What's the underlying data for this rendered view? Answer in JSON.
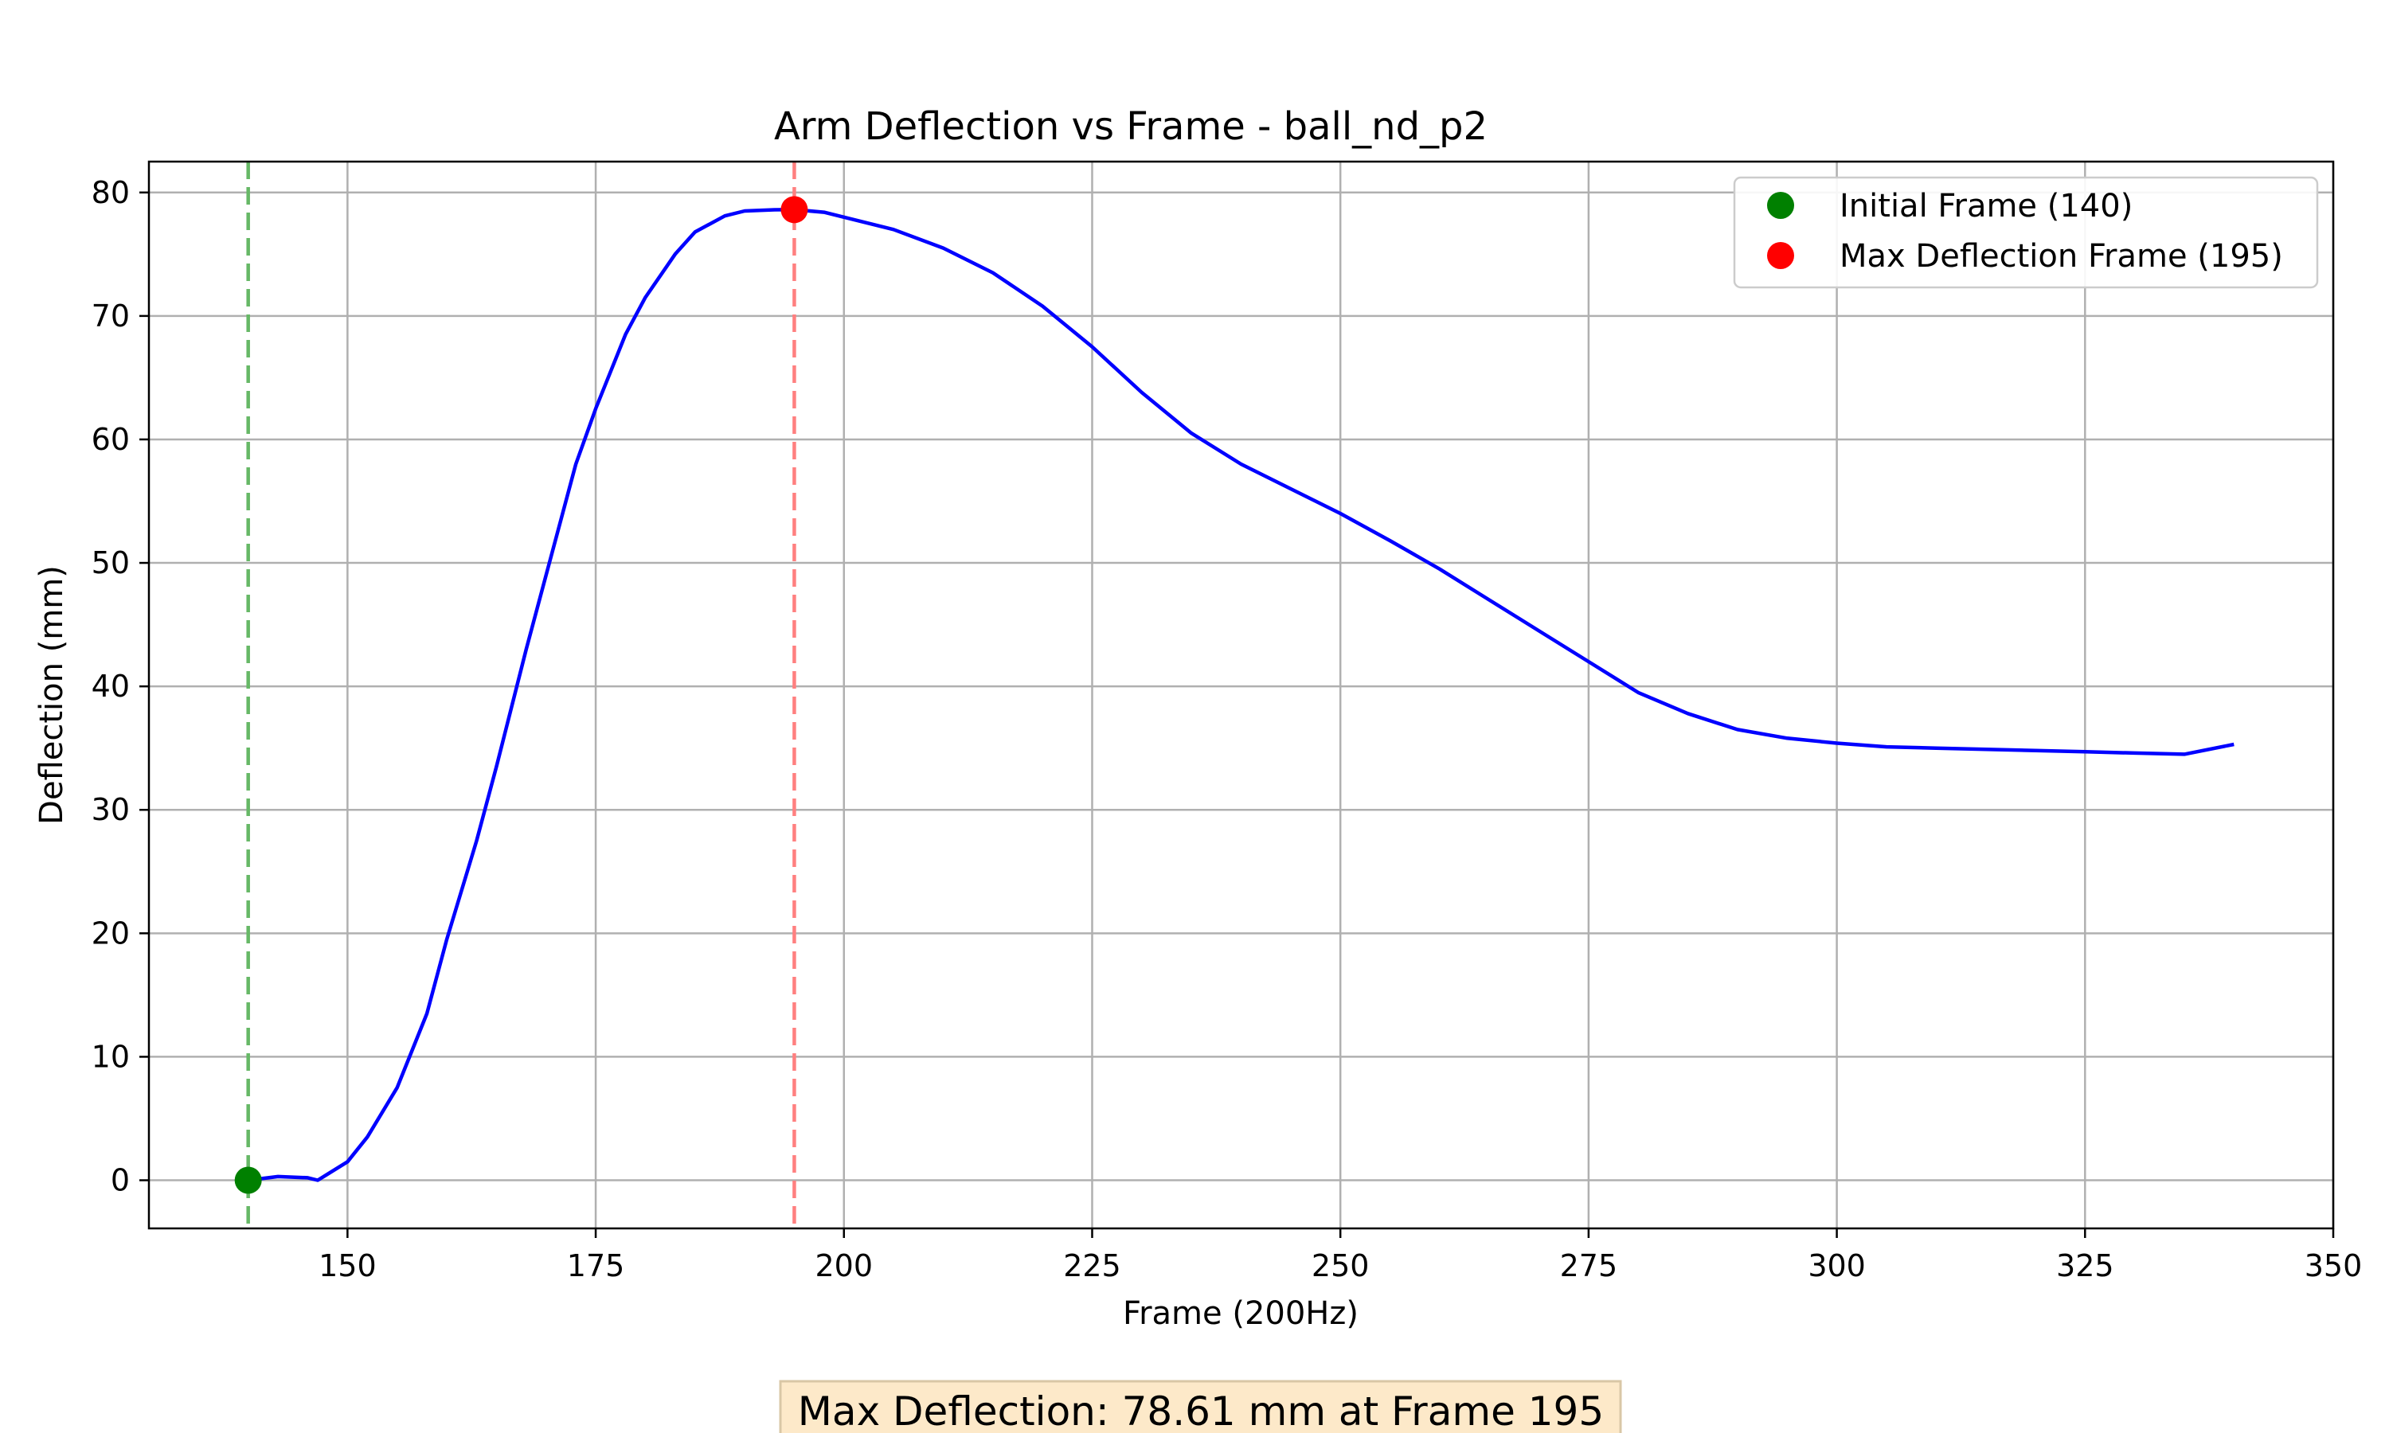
{
  "chart_data": {
    "type": "line",
    "title": "Arm Deflection vs Frame - ball_nd_p2",
    "xlabel": "Frame (200Hz)",
    "ylabel": "Deflection (mm)",
    "xlim": [
      130,
      350
    ],
    "ylim": [
      -3.9,
      82.5
    ],
    "xticks": [
      150,
      175,
      200,
      225,
      250,
      275,
      300,
      325,
      350
    ],
    "yticks": [
      0,
      10,
      20,
      30,
      40,
      50,
      60,
      70,
      80
    ],
    "grid": true,
    "legend_position": "top-right",
    "series": [
      {
        "name": "",
        "color": "#0000ff",
        "x": [
          140,
          143,
          146,
          147,
          148,
          150,
          152,
          155,
          158,
          160,
          163,
          165,
          168,
          170,
          173,
          175,
          178,
          180,
          183,
          185,
          188,
          190,
          193,
          195,
          198,
          200,
          205,
          210,
          215,
          220,
          225,
          230,
          235,
          240,
          245,
          250,
          255,
          260,
          265,
          270,
          275,
          280,
          285,
          290,
          295,
          300,
          305,
          310,
          315,
          320,
          325,
          330,
          335,
          340
        ],
        "y": [
          0,
          0.3,
          0.2,
          0.0,
          0.5,
          1.5,
          3.5,
          7.5,
          13.5,
          19.5,
          27.5,
          33.5,
          43.0,
          49.0,
          58.0,
          62.5,
          68.5,
          71.5,
          75.0,
          76.8,
          78.1,
          78.5,
          78.6,
          78.61,
          78.4,
          78.0,
          77.0,
          75.5,
          73.5,
          70.8,
          67.5,
          63.8,
          60.5,
          58.0,
          56.0,
          54.0,
          51.8,
          49.5,
          47.0,
          44.5,
          42.0,
          39.5,
          37.8,
          36.5,
          35.8,
          35.4,
          35.1,
          35.0,
          34.9,
          34.8,
          34.7,
          34.6,
          34.5,
          35.3
        ]
      }
    ],
    "markers": [
      {
        "label": "Initial Frame (140)",
        "x": 140,
        "y": 0,
        "color": "#008000",
        "line_color": "#66b866"
      },
      {
        "label": "Max Deflection Frame (195)",
        "x": 195,
        "y": 78.61,
        "color": "#ff0000",
        "line_color": "#ff8080"
      }
    ]
  },
  "summary": {
    "text": "Max Deflection: 78.61 mm at Frame 195",
    "background": "#fde9c9",
    "border": "#d9c7a6"
  }
}
